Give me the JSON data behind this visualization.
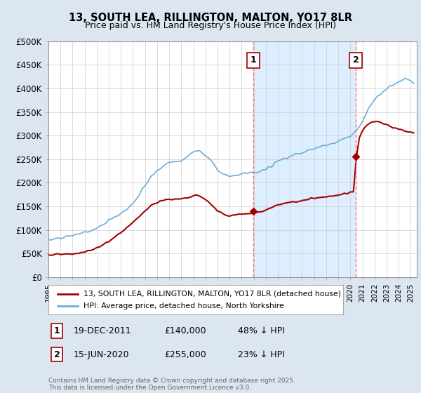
{
  "title": "13, SOUTH LEA, RILLINGTON, MALTON, YO17 8LR",
  "subtitle": "Price paid vs. HM Land Registry's House Price Index (HPI)",
  "ylim": [
    0,
    500000
  ],
  "yticks": [
    0,
    50000,
    100000,
    150000,
    200000,
    250000,
    300000,
    350000,
    400000,
    450000,
    500000
  ],
  "ytick_labels": [
    "£0",
    "£50K",
    "£100K",
    "£150K",
    "£200K",
    "£250K",
    "£300K",
    "£350K",
    "£400K",
    "£450K",
    "£500K"
  ],
  "xlim_start": 1995.0,
  "xlim_end": 2025.5,
  "hpi_color": "#6baed6",
  "price_color": "#a50000",
  "vline_color": "#ff6666",
  "shade_color": "#ddeeff",
  "background_color": "#dce6f1",
  "plot_bg_color": "#ffffff",
  "grid_color": "#cccccc",
  "transactions": [
    {
      "label": "1",
      "date_str": "19-DEC-2011",
      "year": 2011.96,
      "price": 140000
    },
    {
      "label": "2",
      "date_str": "15-JUN-2020",
      "year": 2020.46,
      "price": 255000
    }
  ],
  "legend_property": "13, SOUTH LEA, RILLINGTON, MALTON, YO17 8LR (detached house)",
  "legend_hpi": "HPI: Average price, detached house, North Yorkshire",
  "footer": "Contains HM Land Registry data © Crown copyright and database right 2025.\nThis data is licensed under the Open Government Licence v3.0.",
  "table_rows": [
    {
      "num": "1",
      "date": "19-DEC-2011",
      "price": "£140,000",
      "hpi": "48% ↓ HPI"
    },
    {
      "num": "2",
      "date": "15-JUN-2020",
      "price": "£255,000",
      "hpi": "23% ↓ HPI"
    }
  ],
  "hpi_data": {
    "years": [
      1995,
      1995.25,
      1995.5,
      1995.75,
      1996,
      1996.25,
      1996.5,
      1996.75,
      1997,
      1997.25,
      1997.5,
      1997.75,
      1998,
      1998.25,
      1998.5,
      1998.75,
      1999,
      1999.25,
      1999.5,
      1999.75,
      2000,
      2000.25,
      2000.5,
      2000.75,
      2001,
      2001.25,
      2001.5,
      2001.75,
      2002,
      2002.25,
      2002.5,
      2002.75,
      2003,
      2003.25,
      2003.5,
      2003.75,
      2004,
      2004.25,
      2004.5,
      2004.75,
      2005,
      2005.25,
      2005.5,
      2005.75,
      2006,
      2006.25,
      2006.5,
      2006.75,
      2007,
      2007.25,
      2007.5,
      2007.75,
      2008,
      2008.25,
      2008.5,
      2008.75,
      2009,
      2009.25,
      2009.5,
      2009.75,
      2010,
      2010.25,
      2010.5,
      2010.75,
      2011,
      2011.25,
      2011.5,
      2011.75,
      2012,
      2012.25,
      2012.5,
      2012.75,
      2013,
      2013.25,
      2013.5,
      2013.75,
      2014,
      2014.25,
      2014.5,
      2014.75,
      2015,
      2015.25,
      2015.5,
      2015.75,
      2016,
      2016.25,
      2016.5,
      2016.75,
      2017,
      2017.25,
      2017.5,
      2017.75,
      2018,
      2018.25,
      2018.5,
      2018.75,
      2019,
      2019.25,
      2019.5,
      2019.75,
      2020,
      2020.25,
      2020.5,
      2020.75,
      2021,
      2021.25,
      2021.5,
      2021.75,
      2022,
      2022.25,
      2022.5,
      2022.75,
      2023,
      2023.25,
      2023.5,
      2023.75,
      2024,
      2024.25,
      2024.5,
      2024.75,
      2025,
      2025.25
    ],
    "values": [
      78000,
      79000,
      80000,
      81000,
      82000,
      83500,
      85000,
      86000,
      88000,
      90000,
      92000,
      94000,
      96000,
      98000,
      100000,
      102000,
      105000,
      108000,
      112000,
      116000,
      120000,
      124000,
      128000,
      132000,
      136000,
      140000,
      145000,
      150000,
      157000,
      165000,
      174000,
      184000,
      194000,
      204000,
      213000,
      220000,
      226000,
      232000,
      237000,
      240000,
      242000,
      244000,
      245000,
      246000,
      248000,
      252000,
      256000,
      260000,
      265000,
      270000,
      268000,
      263000,
      258000,
      252000,
      245000,
      236000,
      228000,
      222000,
      218000,
      215000,
      214000,
      215000,
      217000,
      218000,
      218000,
      219000,
      220000,
      221000,
      221000,
      222000,
      223000,
      225000,
      228000,
      232000,
      237000,
      242000,
      246000,
      249000,
      252000,
      254000,
      256000,
      258000,
      260000,
      262000,
      264000,
      266000,
      268000,
      270000,
      272000,
      274000,
      276000,
      278000,
      280000,
      282000,
      284000,
      286000,
      288000,
      291000,
      294000,
      297000,
      300000,
      305000,
      312000,
      320000,
      330000,
      342000,
      355000,
      366000,
      376000,
      384000,
      390000,
      394000,
      398000,
      402000,
      406000,
      410000,
      414000,
      418000,
      420000,
      418000,
      415000,
      412000
    ]
  },
  "price_data": {
    "years": [
      1995,
      1995.25,
      1995.5,
      1995.75,
      1996,
      1996.25,
      1996.5,
      1996.75,
      1997,
      1997.25,
      1997.5,
      1997.75,
      1998,
      1998.25,
      1998.5,
      1998.75,
      1999,
      1999.25,
      1999.5,
      1999.75,
      2000,
      2000.25,
      2000.5,
      2000.75,
      2001,
      2001.25,
      2001.5,
      2001.75,
      2002,
      2002.25,
      2002.5,
      2002.75,
      2003,
      2003.25,
      2003.5,
      2003.75,
      2004,
      2004.25,
      2004.5,
      2004.75,
      2005,
      2005.25,
      2005.5,
      2005.75,
      2006,
      2006.25,
      2006.5,
      2006.75,
      2007,
      2007.25,
      2007.5,
      2007.75,
      2008,
      2008.25,
      2008.5,
      2008.75,
      2009,
      2009.25,
      2009.5,
      2009.75,
      2010,
      2010.25,
      2010.5,
      2010.75,
      2011,
      2011.25,
      2011.5,
      2011.75,
      2012,
      2012.25,
      2012.5,
      2012.75,
      2013,
      2013.25,
      2013.5,
      2013.75,
      2014,
      2014.25,
      2014.5,
      2014.75,
      2015,
      2015.25,
      2015.5,
      2015.75,
      2016,
      2016.25,
      2016.5,
      2016.75,
      2017,
      2017.25,
      2017.5,
      2017.75,
      2018,
      2018.25,
      2018.5,
      2018.75,
      2019,
      2019.25,
      2019.5,
      2019.75,
      2020,
      2020.25,
      2020.5,
      2020.75,
      2021,
      2021.25,
      2021.5,
      2021.75,
      2022,
      2022.25,
      2022.5,
      2022.75,
      2023,
      2023.25,
      2023.5,
      2023.75,
      2024,
      2024.25,
      2024.5,
      2024.75,
      2025,
      2025.25
    ],
    "values": [
      46000,
      47000,
      47500,
      48000,
      48500,
      49000,
      49200,
      49400,
      49600,
      50000,
      51000,
      52000,
      53500,
      55000,
      57000,
      59000,
      62000,
      65000,
      68000,
      72000,
      76000,
      80000,
      85000,
      90000,
      95000,
      100000,
      105000,
      110000,
      116000,
      122000,
      128000,
      134000,
      140000,
      146000,
      151000,
      155000,
      158000,
      161000,
      163000,
      164000,
      164000,
      164500,
      165000,
      165000,
      165500,
      166000,
      168000,
      170000,
      173000,
      175000,
      172000,
      168000,
      164000,
      159000,
      153000,
      146000,
      140000,
      136000,
      133000,
      131000,
      130000,
      131000,
      132000,
      133000,
      133000,
      134000,
      135000,
      136000,
      136000,
      137000,
      138000,
      140000,
      142000,
      145000,
      148000,
      151000,
      153000,
      155000,
      156000,
      157000,
      158000,
      159000,
      160000,
      161000,
      162000,
      163000,
      164000,
      165000,
      166000,
      167000,
      168000,
      169000,
      170000,
      171000,
      172000,
      173000,
      174000,
      175000,
      176000,
      178000,
      180000,
      182000,
      255000,
      295000,
      310000,
      320000,
      325000,
      328000,
      330000,
      330000,
      328000,
      325000,
      322000,
      320000,
      318000,
      316000,
      314000,
      312000,
      310000,
      308000,
      307000,
      305000
    ]
  }
}
